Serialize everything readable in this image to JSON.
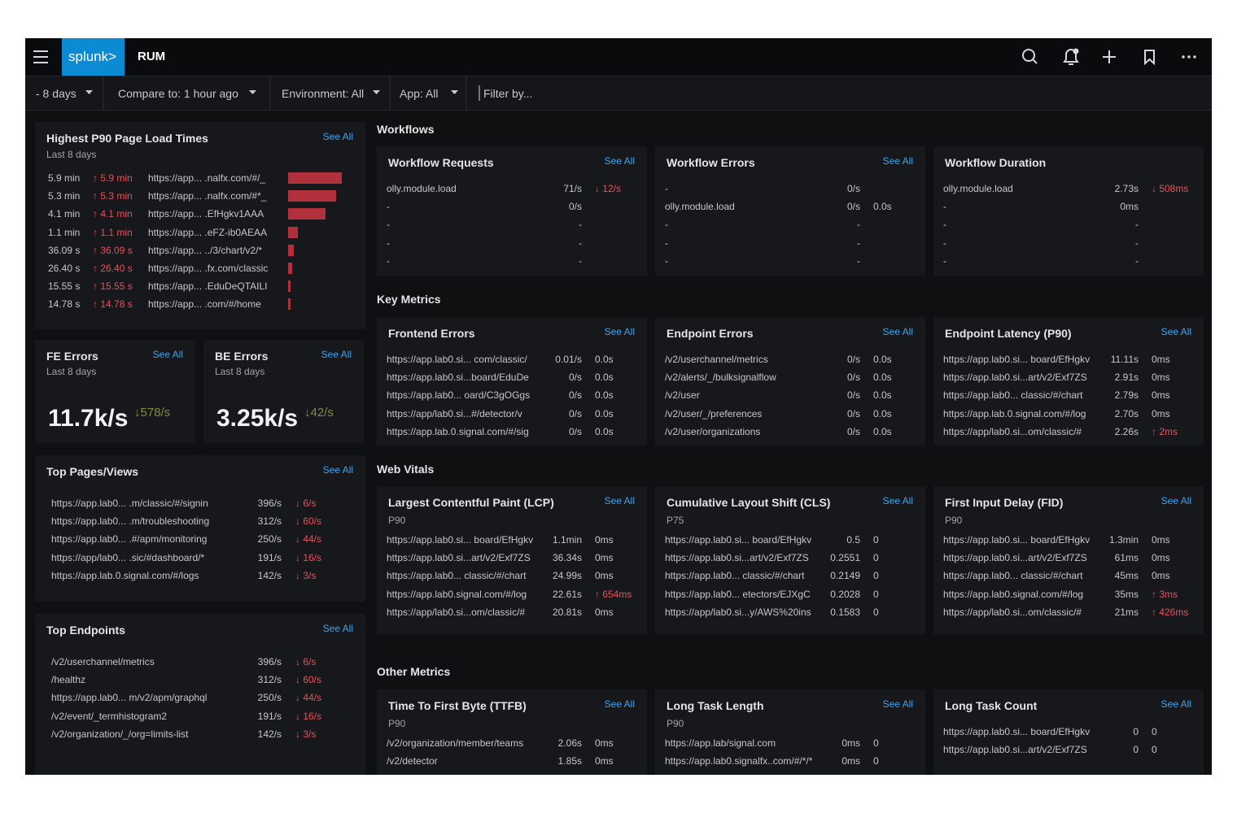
{
  "header": {
    "logo": "splunk>",
    "app": "RUM"
  },
  "filters": {
    "items": [
      "- 8 days",
      "Compare to: 1 hour ago",
      "Environment: All",
      "App: All"
    ],
    "search_placeholder": "Filter by..."
  },
  "left_panels": {
    "p90": {
      "title": "Highest P90 Page Load Times",
      "subtitle": "Last 8 days",
      "see_all": "See All",
      "rows": [
        {
          "value": "5.9 min",
          "change": "↑ 5.9 min",
          "url": "https://app... .nalfx.com/#/_",
          "seconds": 354
        },
        {
          "value": "5.3 min",
          "change": "↑ 5.3 min",
          "url": "https://app... .nalfx.com/#*_",
          "seconds": 318
        },
        {
          "value": "4.1 min",
          "change": "↑ 4.1 min",
          "url": "https://app... .EfHgkv1AAA",
          "seconds": 246
        },
        {
          "value": "1.1 min",
          "change": "↑ 1.1 min",
          "url": "https://app... .eFZ-ib0AEAA",
          "seconds": 66
        },
        {
          "value": "36.09 s",
          "change": "↑ 36.09 s",
          "url": "https://app... ../3/chart/v2/*",
          "seconds": 36.09
        },
        {
          "value": "26.40 s",
          "change": "↑ 26.40 s",
          "url": "https://app... .fx.com/classic",
          "seconds": 26.4
        },
        {
          "value": "15.55 s",
          "change": "↑ 15.55 s",
          "url": "https://app... .EduDeQTAILI",
          "seconds": 15.55
        },
        {
          "value": "14.78 s",
          "change": "↑ 14.78 s",
          "url": "https://app... .com/#/home",
          "seconds": 14.78
        }
      ]
    },
    "fe_errors": {
      "title": "FE Errors",
      "see_all": "See All",
      "subtitle": "Last 8 days",
      "value": "11.7k/s",
      "change": "↓578/s"
    },
    "be_errors": {
      "title": "BE Errors",
      "see_all": "See All",
      "subtitle": "Last 8 days",
      "value": "3.25k/s",
      "change": "↓42/s"
    },
    "top_pages": {
      "title": "Top Pages/Views",
      "see_all": "See All",
      "rows": [
        [
          "https://app.lab0... .m/classic/#/signin",
          "396/s",
          "↓ 6/s"
        ],
        [
          "https://app.lab0... .m/troubleshooting",
          "312/s",
          "↓ 60/s"
        ],
        [
          "https://app.lab0... .#/apm/monitoring",
          "250/s",
          "↓ 44/s"
        ],
        [
          "https://app/lab0... .sic/#dashboard/*",
          "191/s",
          "↓ 16/s"
        ],
        [
          "https://app.lab.0.signal.com/#/logs",
          "142/s",
          "↓ 3/s"
        ]
      ]
    },
    "top_endpoints": {
      "title": "Top Endpoints",
      "see_all": "See All",
      "rows": [
        [
          "/v2/userchannel/metrics",
          "396/s",
          "↓ 6/s"
        ],
        [
          "/healthz",
          "312/s",
          "↓ 60/s"
        ],
        [
          "https://app.lab0... m/v2/apm/graphql",
          "250/s",
          "↓ 44/s"
        ],
        [
          "/v2/event/_termhistogram2",
          "191/s",
          "↓ 16/s"
        ],
        [
          "/v2/organization/_/org=limits-list",
          "142/s",
          "↓ 3/s"
        ]
      ]
    }
  },
  "sections": [
    {
      "title": "Workflows",
      "cards": [
        {
          "title": "Workflow Requests",
          "see_all": "See All",
          "rows": [
            [
              "olly.module.load",
              "71/s",
              "↓ 12/s"
            ],
            [
              "-",
              "0/s"
            ],
            [
              "-",
              "-"
            ],
            [
              "-",
              "-"
            ],
            [
              "-",
              "-"
            ]
          ]
        },
        {
          "title": "Workflow Errors",
          "see_all": "See All",
          "rows": [
            [
              "-",
              "0/s"
            ],
            [
              "olly.module.load",
              "0/s",
              "0.0s"
            ],
            [
              "-",
              "-"
            ],
            [
              "-",
              "-"
            ],
            [
              "-",
              "-"
            ]
          ]
        },
        {
          "title": "Workflow Duration",
          "rows": [
            [
              "olly.module.load",
              "2.73s",
              "↓ 508ms"
            ],
            [
              "-",
              "0ms"
            ],
            [
              "-",
              "-"
            ],
            [
              "-",
              "-"
            ],
            [
              "-",
              "-"
            ]
          ]
        }
      ]
    },
    {
      "title": "Key Metrics",
      "cards": [
        {
          "title": "Frontend Errors",
          "see_all": "See All",
          "rows": [
            [
              "https://app.lab0.si... com/classic/",
              "0.01/s",
              "0.0s"
            ],
            [
              "https://app.lab0.si...board/EduDe",
              "0/s",
              "0.0s"
            ],
            [
              "https://app.lab0... oard/C3gOGgs",
              "0/s",
              "0.0s"
            ],
            [
              "https://app/lab0.si...#/detector/v",
              "0/s",
              "0.0s"
            ],
            [
              "https://app.lab.0.signal.com/#/sig",
              "0/s",
              "0.0s"
            ]
          ]
        },
        {
          "title": "Endpoint Errors",
          "see_all": "See All",
          "rows": [
            [
              "/v2/userchannel/metrics",
              "0/s",
              "0.0s"
            ],
            [
              "/v2/alerts/_/bulksignalflow",
              "0/s",
              "0.0s"
            ],
            [
              "/v2/user",
              "0/s",
              "0.0s"
            ],
            [
              "/v2/user/_/preferences",
              "0/s",
              "0.0s"
            ],
            [
              "/v2/user/organizations",
              "0/s",
              "0.0s"
            ]
          ]
        },
        {
          "title": "Endpoint Latency (P90)",
          "see_all": "See All",
          "rows": [
            [
              "https://app.lab0.si... board/EfHgkv",
              "11.11s",
              "0ms"
            ],
            [
              "https://app.lab0.si...art/v2/Exf7ZS",
              "2.91s",
              "0ms"
            ],
            [
              "https://app.lab0... classic/#/chart",
              "2.79s",
              "0ms"
            ],
            [
              "https://app.lab.0.signal.com/#/log",
              "2.70s",
              "0ms"
            ],
            [
              "https://app/lab0.si...om/classic/#",
              "2.26s",
              "↑ 2ms"
            ]
          ]
        }
      ]
    },
    {
      "title": "Web Vitals",
      "cards": [
        {
          "title": "Largest Contentful Paint (LCP)",
          "see_all": "See All",
          "subtitle": "P90",
          "rows": [
            [
              "https://app.lab0.si... board/EfHgkv",
              "1.1min",
              "0ms"
            ],
            [
              "https://app.lab0.si...art/v2/Exf7ZS",
              "36.34s",
              "0ms"
            ],
            [
              "https://app.lab0... classic/#/chart",
              "24.99s",
              "0ms"
            ],
            [
              "https://app.lab0.signal.com/#/log",
              "22.61s",
              "↑ 654ms"
            ],
            [
              "https://app/lab0.si...om/classic/#",
              "20.81s",
              "0ms"
            ]
          ]
        },
        {
          "title": "Cumulative Layout Shift (CLS)",
          "see_all": "See All",
          "subtitle": "P75",
          "rows": [
            [
              "https://app.lab0.si... board/EfHgkv",
              "0.5",
              "0"
            ],
            [
              "https://app.lab0.si...art/v2/Exf7ZS",
              "0.2551",
              "0"
            ],
            [
              "https://app.lab0... classic/#/chart",
              "0.2149",
              "0"
            ],
            [
              "https://app.lab0... etectors/EJXgC",
              "0.2028",
              "0"
            ],
            [
              "https://app/lab0.si...y/AWS%20ins",
              "0.1583",
              "0"
            ]
          ]
        },
        {
          "title": "First Input Delay (FID)",
          "see_all": "See All",
          "subtitle": "P90",
          "rows": [
            [
              "https://app.lab0.si... board/EfHgkv",
              "1.3min",
              "0ms"
            ],
            [
              "https://app.lab0.si...art/v2/Exf7ZS",
              "61ms",
              "0ms"
            ],
            [
              "https://app.lab0... classic/#/chart",
              "45ms",
              "0ms"
            ],
            [
              "https://app.lab0.signal.com/#/log",
              "35ms",
              "↑ 3ms"
            ],
            [
              "https://app/lab0.si...om/classic/#",
              "21ms",
              "↑ 426ms"
            ]
          ]
        }
      ]
    },
    {
      "title": "Other Metrics",
      "cards": [
        {
          "title": "Time To First Byte (TTFB)",
          "see_all": "See All",
          "subtitle": "P90",
          "rows": [
            [
              "/v2/organization/member/teams",
              "2.06s",
              "0ms"
            ],
            [
              "/v2/detector",
              "1.85s",
              "0ms"
            ]
          ]
        },
        {
          "title": "Long Task Length",
          "see_all": "See All",
          "subtitle": "P90",
          "rows": [
            [
              "https://app.lab/signal.com",
              "0ms",
              "0"
            ],
            [
              "https://app.lab0.signalfx..com/#/*/*",
              "0ms",
              "0"
            ]
          ]
        },
        {
          "title": "Long Task Count",
          "see_all": "See All",
          "rows": [
            [
              "https://app.lab0.si... board/EfHgkv",
              "0",
              "0"
            ],
            [
              "https://app.lab0.si...art/v2/Exf7ZS",
              "0",
              "0"
            ]
          ]
        }
      ]
    }
  ]
}
